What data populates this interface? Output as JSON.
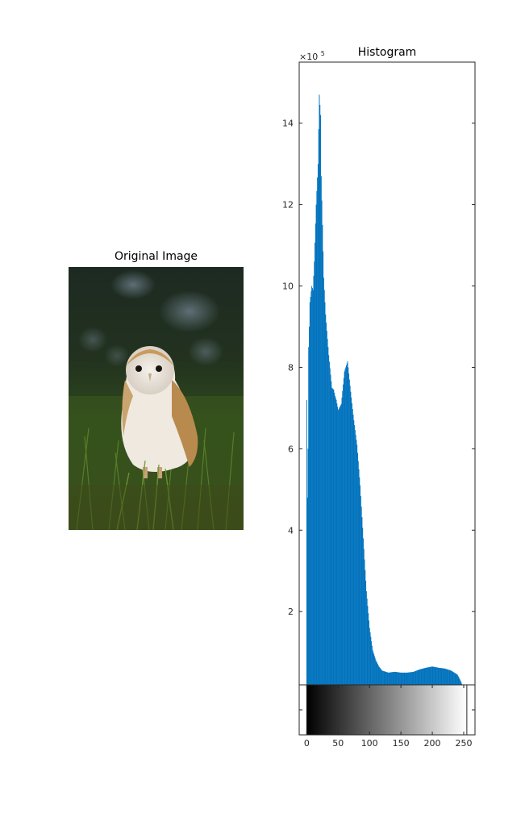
{
  "image_panel": {
    "title": "Original Image",
    "icon": "owl-photo-icon"
  },
  "chart_data": {
    "type": "bar",
    "title": "Histogram",
    "xlabel": "",
    "ylabel": "",
    "y_multiplier": "×10",
    "y_exponent": "5",
    "xlim": [
      -12,
      268
    ],
    "ylim": [
      0.2,
      15.5
    ],
    "x_ticks": [
      0,
      50,
      100,
      150,
      200,
      250
    ],
    "y_ticks": [
      2,
      4,
      6,
      8,
      10,
      12,
      14
    ],
    "grid": false,
    "bar_color": "#0072BD",
    "colorbar": "gray",
    "intensity": [
      0,
      1,
      2,
      3,
      4,
      5,
      8,
      10,
      12,
      15,
      18,
      20,
      22,
      23,
      25,
      27,
      30,
      35,
      40,
      43,
      45,
      47,
      50,
      55,
      60,
      65,
      70,
      75,
      80,
      85,
      90,
      95,
      100,
      105,
      110,
      115,
      120,
      130,
      140,
      150,
      160,
      170,
      180,
      190,
      200,
      210,
      220,
      230,
      240,
      245,
      250,
      255
    ],
    "counts_x1e5": [
      7.2,
      4.8,
      6.0,
      8.5,
      9.0,
      9.6,
      10.0,
      9.9,
      10.6,
      12.0,
      13.0,
      14.7,
      14.2,
      12.7,
      11.5,
      10.2,
      9.3,
      8.3,
      7.5,
      7.45,
      7.3,
      7.2,
      6.95,
      7.1,
      7.9,
      8.15,
      7.4,
      6.7,
      6.1,
      5.1,
      3.8,
      2.5,
      1.6,
      1.05,
      0.8,
      0.65,
      0.55,
      0.5,
      0.52,
      0.5,
      0.5,
      0.52,
      0.58,
      0.62,
      0.65,
      0.62,
      0.6,
      0.55,
      0.45,
      0.3,
      0.1,
      0.0
    ]
  }
}
